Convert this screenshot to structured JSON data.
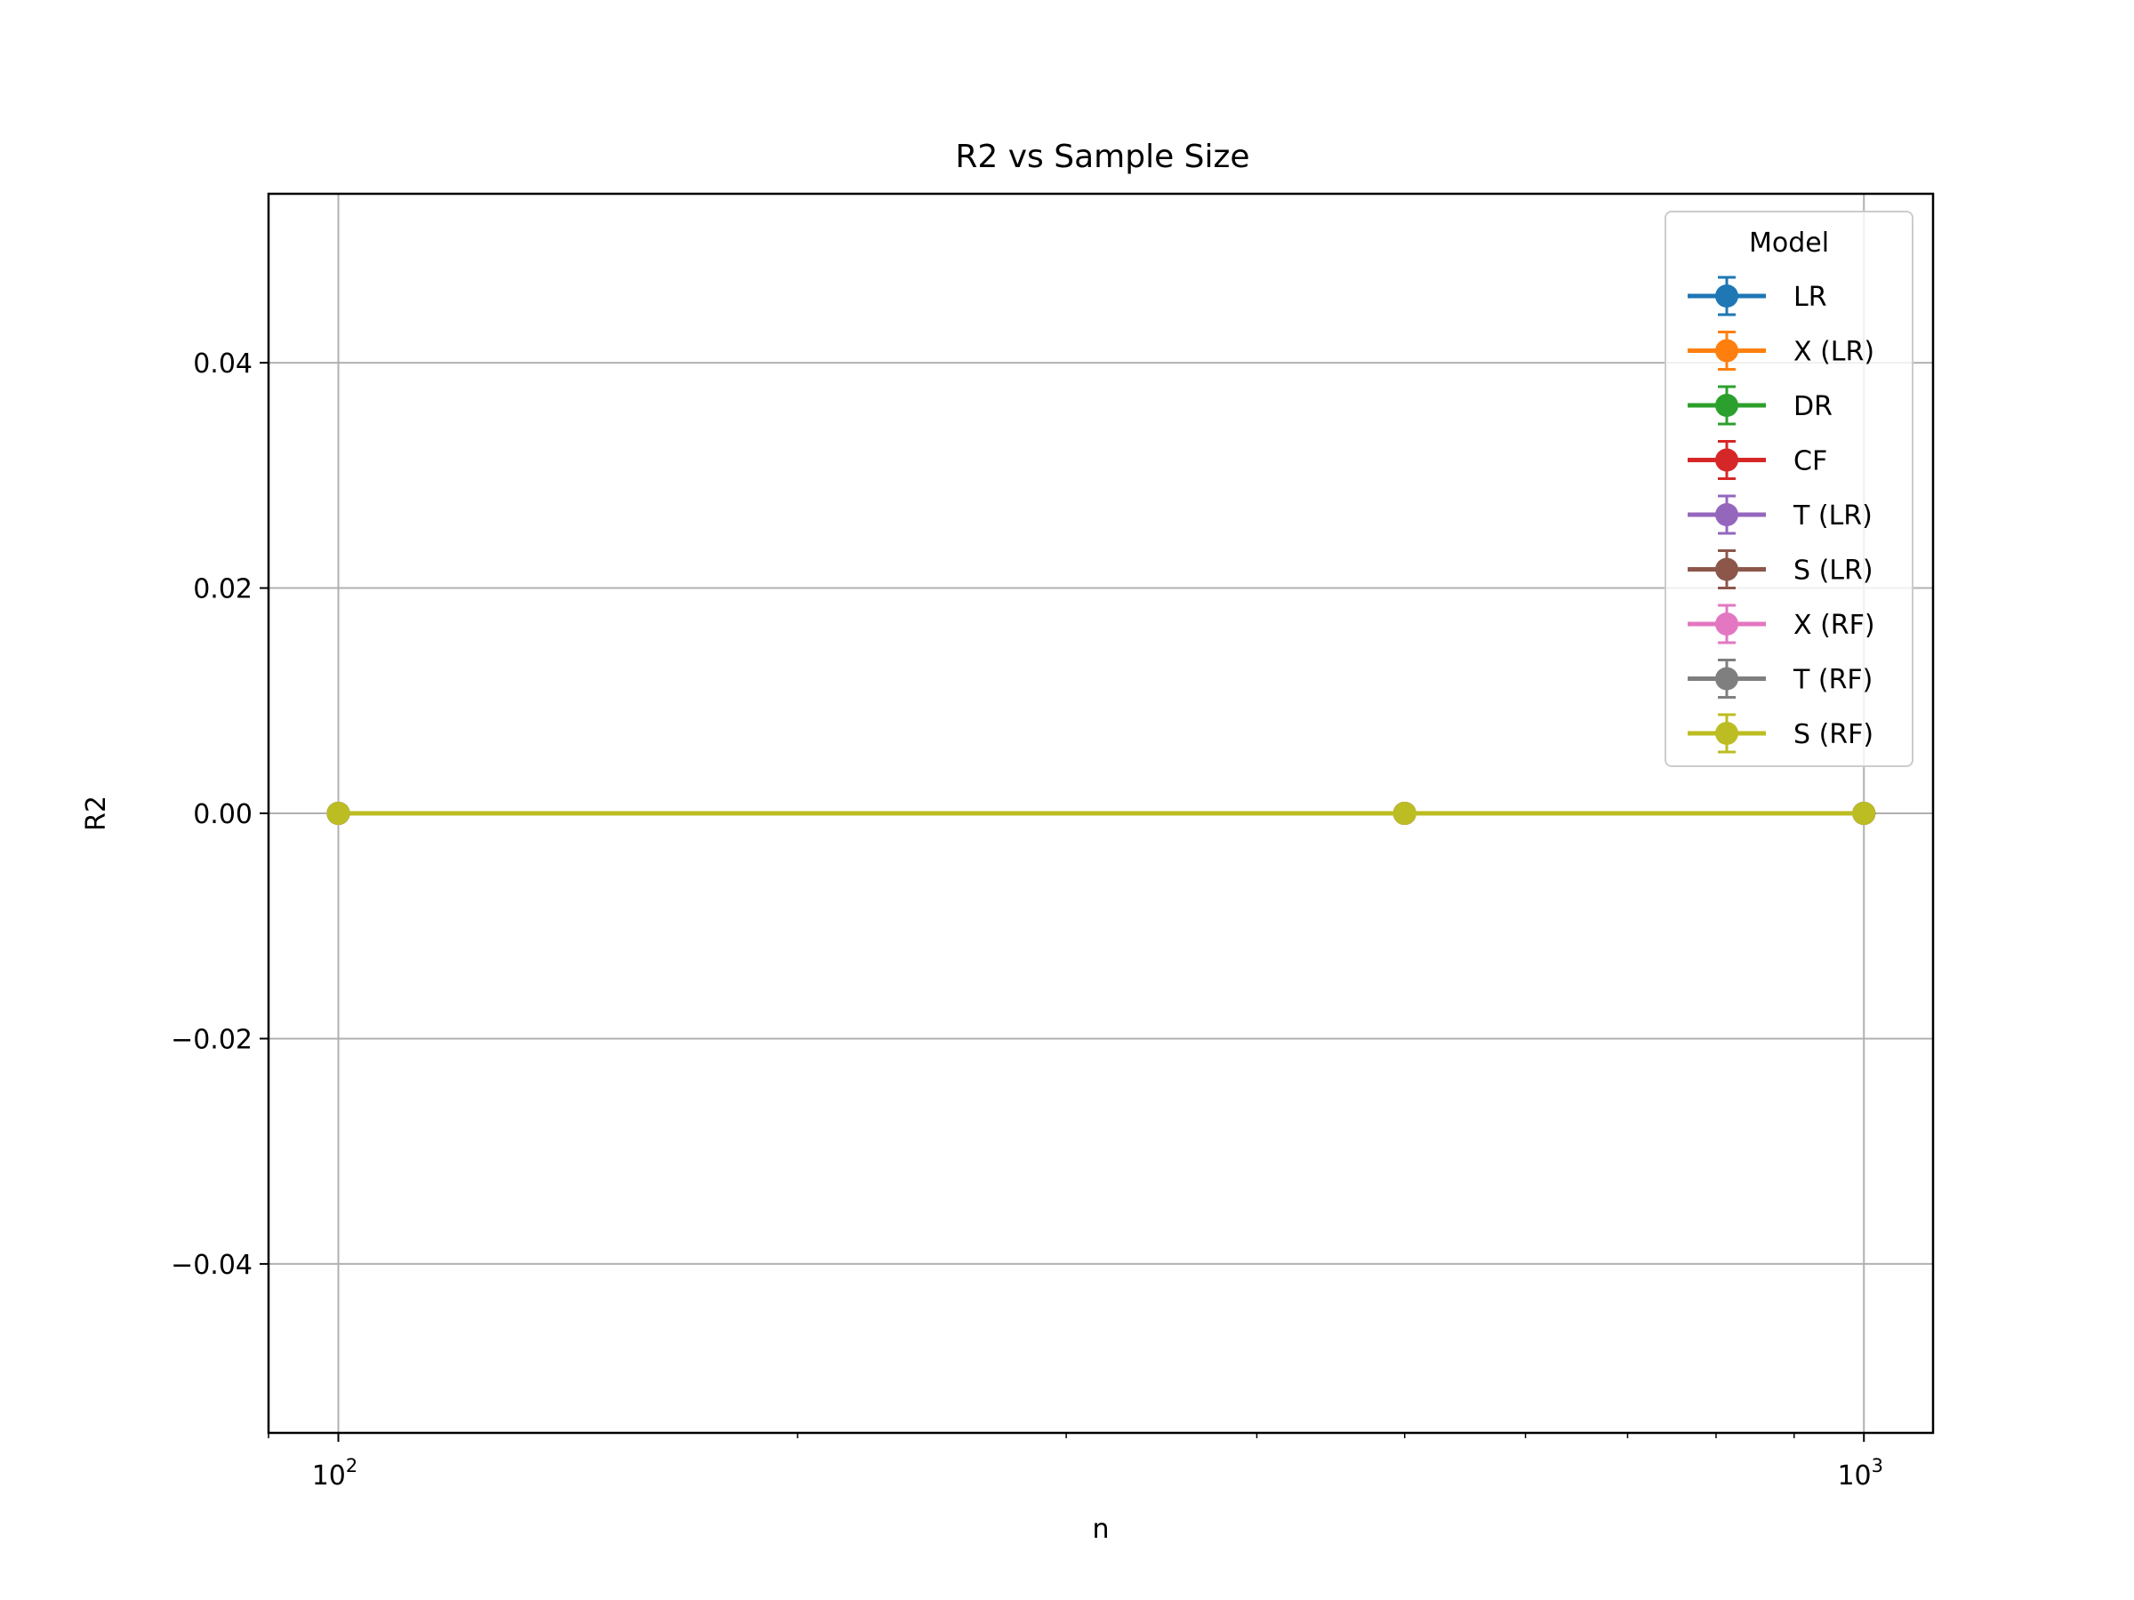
{
  "chart_data": {
    "type": "line",
    "title": "R2 vs Sample Size",
    "xlabel": "n",
    "ylabel": "R2",
    "xscale": "log",
    "xlim": [
      90,
      1110
    ],
    "ylim": [
      -0.055,
      0.055
    ],
    "grid": true,
    "x": [
      100,
      500,
      1000
    ],
    "x_ticks": [
      {
        "value": 100,
        "base": "10",
        "exp": "2"
      },
      {
        "value": 1000,
        "base": "10",
        "exp": "3"
      }
    ],
    "y_ticks": [
      {
        "value": -0.04,
        "label": "−0.04"
      },
      {
        "value": -0.02,
        "label": "−0.02"
      },
      {
        "value": 0.0,
        "label": "0.00"
      },
      {
        "value": 0.02,
        "label": "0.02"
      },
      {
        "value": 0.04,
        "label": "0.04"
      }
    ],
    "legend_title": "Model",
    "legend_location": "top-right",
    "series": [
      {
        "name": "LR",
        "color": "#1f77b4",
        "values": [
          0,
          0,
          0
        ]
      },
      {
        "name": "X (LR)",
        "color": "#ff7f0e",
        "values": [
          0,
          0,
          0
        ]
      },
      {
        "name": "DR",
        "color": "#2ca02c",
        "values": [
          0,
          0,
          0
        ]
      },
      {
        "name": "CF",
        "color": "#d62728",
        "values": [
          0,
          0,
          0
        ]
      },
      {
        "name": "T (LR)",
        "color": "#9467bd",
        "values": [
          0,
          0,
          0
        ]
      },
      {
        "name": "S (LR)",
        "color": "#8c564b",
        "values": [
          0,
          0,
          0
        ]
      },
      {
        "name": "X (RF)",
        "color": "#e377c2",
        "values": [
          0,
          0,
          0
        ]
      },
      {
        "name": "T (RF)",
        "color": "#7f7f7f",
        "values": [
          0,
          0,
          0
        ]
      },
      {
        "name": "S (RF)",
        "color": "#bcbd22",
        "values": [
          0,
          0,
          0
        ]
      }
    ]
  }
}
